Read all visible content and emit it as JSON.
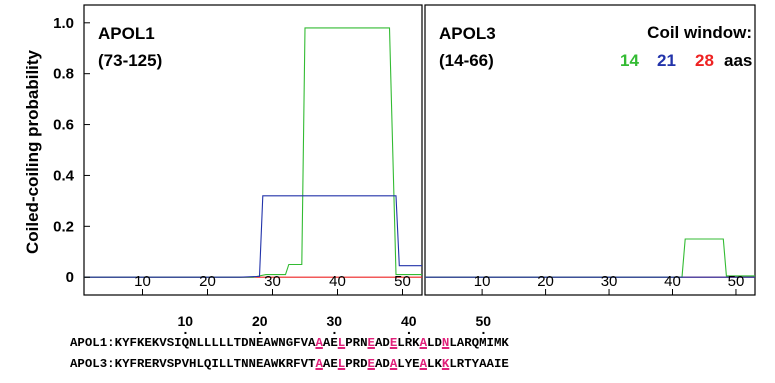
{
  "chart_data": {
    "type": "line",
    "ylabel": "Coiled-coiling probability",
    "ylim": [
      -0.07,
      1.07
    ],
    "yticks": [
      0,
      0.2,
      0.4,
      0.6,
      0.8,
      1.0
    ],
    "ytick_labels": [
      "0",
      "0.2",
      "0.4",
      "0.6",
      "0.8",
      "1.0"
    ],
    "xlim": [
      1,
      53
    ],
    "xticks": [
      10,
      20,
      30,
      40,
      50
    ],
    "xtick_labels": [
      "10",
      "20",
      "30",
      "40",
      "50"
    ],
    "legend": {
      "title": "Coil window:",
      "entries": [
        {
          "label": "14",
          "color": "#33bb33"
        },
        {
          "label": "21",
          "color": "#2233aa"
        },
        {
          "label": "28",
          "color": "#ee2222"
        }
      ],
      "suffix": "aas"
    },
    "panels": [
      {
        "title_line1": "APOL1",
        "title_line2": "(73-125)",
        "series": [
          {
            "name": "14",
            "color": "#33bb33",
            "points": [
              [
                1,
                0
              ],
              [
                27,
                0
              ],
              [
                29,
                0.01
              ],
              [
                32,
                0.01
              ],
              [
                32.5,
                0.05
              ],
              [
                34.5,
                0.05
              ],
              [
                35,
                0.98
              ],
              [
                48,
                0.98
              ],
              [
                49,
                0.01
              ],
              [
                53,
                0.01
              ]
            ]
          },
          {
            "name": "21",
            "color": "#2233aa",
            "points": [
              [
                1,
                0
              ],
              [
                25,
                0
              ],
              [
                28,
                0.003
              ],
              [
                28.5,
                0.32
              ],
              [
                49,
                0.32
              ],
              [
                49.5,
                0.045
              ],
              [
                53,
                0.045
              ]
            ]
          },
          {
            "name": "28",
            "color": "#ee2222",
            "points": [
              [
                1,
                0
              ],
              [
                53,
                0
              ]
            ]
          }
        ]
      },
      {
        "title_line1": "APOL3",
        "title_line2": "(14-66)",
        "series": [
          {
            "name": "14",
            "color": "#33bb33",
            "points": [
              [
                1,
                0
              ],
              [
                41.5,
                0
              ],
              [
                42,
                0.15
              ],
              [
                48,
                0.15
              ],
              [
                48.5,
                0.005
              ],
              [
                53,
                0.005
              ]
            ]
          },
          {
            "name": "21",
            "color": "#2233aa",
            "points": [
              [
                1,
                0
              ],
              [
                53,
                0
              ]
            ]
          },
          {
            "name": "28",
            "color": "#ee2222",
            "points": [
              [
                1,
                0
              ],
              [
                53,
                0
              ]
            ]
          }
        ]
      }
    ]
  },
  "alignment": {
    "positions": [
      "10",
      "20",
      "30",
      "40",
      "50"
    ],
    "rows": [
      {
        "label": "APOL1:",
        "sequence": "KYFKEKVSIQNLLLLLTDNEAWNGFVAAAELPRNEADELRKALDNLARQMIMK"
      },
      {
        "label": "APOL3:",
        "sequence": "KYFRERVSPVHLQILLTNNEAWKRFVTAAELPRDEADALYEALKKLRTYAAIE"
      }
    ],
    "highlight_positions": [
      28,
      31,
      35,
      38,
      42,
      45
    ]
  }
}
